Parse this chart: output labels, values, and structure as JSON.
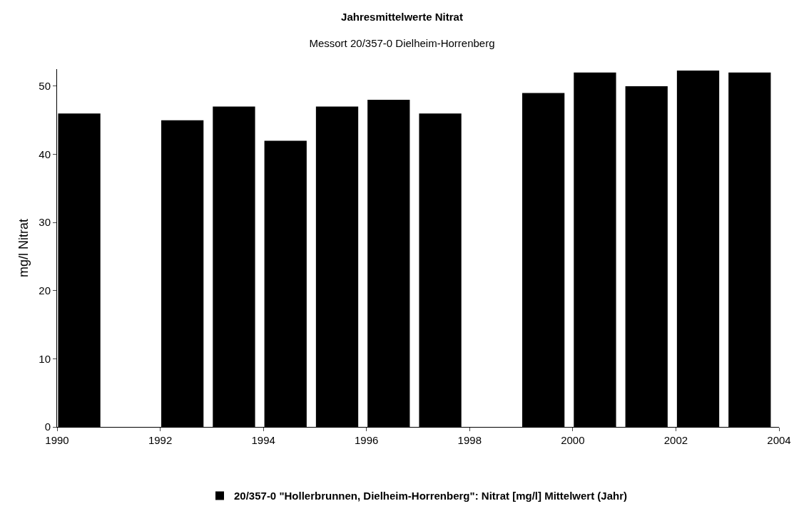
{
  "chart_data": {
    "type": "bar",
    "title": "Jahresmittelwerte Nitrat",
    "subtitle": "Messort 20/357-0 Dielheim-Horrenberg",
    "ylabel": "mg/l Nitrat",
    "x": [
      1990.43,
      1992.43,
      1993.43,
      1994.43,
      1995.43,
      1996.43,
      1997.43,
      1999.43,
      2000.43,
      2001.43,
      2002.43,
      2003.43
    ],
    "series": [
      {
        "name": "20/357-0 \"Hollerbrunnen, Dielheim-Horrenberg\": Nitrat [mg/l] Mittelwert (Jahr)",
        "color": "#000000",
        "values": [
          46,
          45,
          47,
          42,
          47,
          48,
          46,
          49,
          52,
          50,
          52.3,
          52
        ]
      }
    ],
    "xlim": [
      1990,
      2004
    ],
    "xticks": [
      1990,
      1992,
      1994,
      1996,
      1998,
      2000,
      2002,
      2004
    ],
    "ylim": [
      0,
      52.5
    ],
    "yticks": [
      0,
      10,
      20,
      30,
      40,
      50
    ],
    "grid": false,
    "legend": "bottom"
  }
}
